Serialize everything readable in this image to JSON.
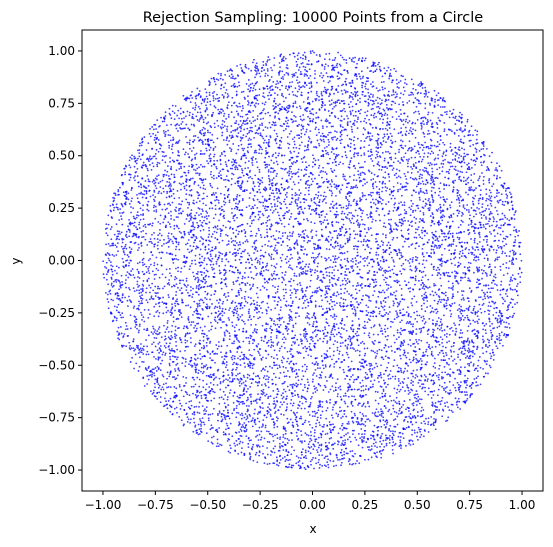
{
  "chart_data": {
    "type": "scatter",
    "title": "Rejection Sampling: 10000 Points from a Circle",
    "xlabel": "x",
    "ylabel": "y",
    "xlim": [
      -1.1,
      1.1
    ],
    "ylim": [
      -1.1,
      1.1
    ],
    "x_ticks": [
      -1.0,
      -0.75,
      -0.5,
      -0.25,
      0.0,
      0.25,
      0.5,
      0.75,
      1.0
    ],
    "y_ticks": [
      -1.0,
      -0.75,
      -0.5,
      -0.25,
      0.0,
      0.25,
      0.5,
      0.75,
      1.0
    ],
    "x_tick_labels": [
      "−1.00",
      "−0.75",
      "−0.50",
      "−0.25",
      "0.00",
      "0.25",
      "0.50",
      "0.75",
      "1.00"
    ],
    "y_tick_labels": [
      "−1.00",
      "−0.75",
      "−0.50",
      "−0.25",
      "0.00",
      "0.25",
      "0.50",
      "0.75",
      "1.00"
    ],
    "grid": false,
    "legend": "none",
    "series": [
      {
        "count": 10000,
        "color": "#0000ff",
        "shape": "uniform points inside unit circle",
        "circle_center": [
          0,
          0
        ],
        "circle_radius": 1.0
      }
    ]
  }
}
